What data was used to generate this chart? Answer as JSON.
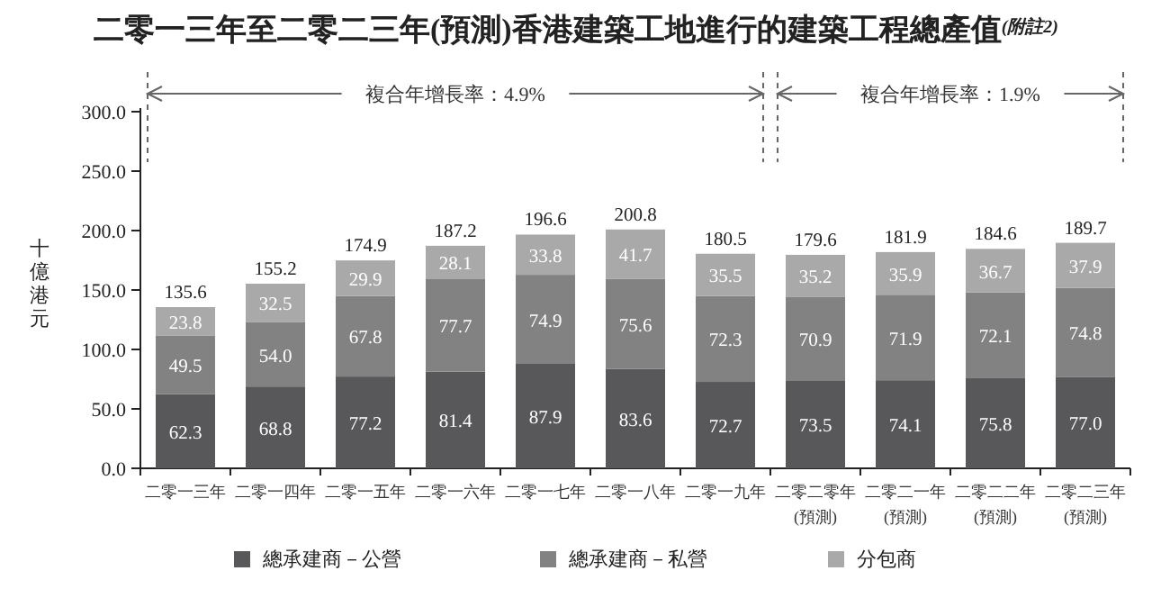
{
  "chart_data": {
    "type": "bar",
    "stacked": true,
    "title": "二零一三年至二零二三年(預測)香港建築工地進行的建築工程總產值",
    "subtitle": "(附註2)",
    "ylabel": "十億港元",
    "categories": [
      "二零一三年",
      "二零一四年",
      "二零一五年",
      "二零一六年",
      "二零一七年",
      "二零一八年",
      "二零一九年",
      "二零二零年\n(預測)",
      "二零二一年\n(預測)",
      "二零二二年\n(預測)",
      "二零二三年\n(預測)"
    ],
    "series": [
      {
        "name": "總承建商－公營",
        "color": "#58585a",
        "values": [
          62.3,
          68.8,
          77.2,
          81.4,
          87.9,
          83.6,
          72.7,
          73.5,
          74.1,
          75.8,
          77.0
        ],
        "value_labels": [
          "62.3",
          "68.8",
          "77.2",
          "81.4",
          "87.9",
          "83.6",
          "72.7",
          "73.5",
          "74.1",
          "75.8",
          "77.0"
        ]
      },
      {
        "name": "總承建商－私營",
        "color": "#828282",
        "values": [
          49.5,
          54.0,
          67.8,
          77.7,
          74.9,
          75.6,
          72.3,
          70.9,
          71.9,
          72.1,
          74.8
        ],
        "value_labels": [
          "49.5",
          "54.0",
          "67.8",
          "77.7",
          "74.9",
          "75.6",
          "72.3",
          "70.9",
          "71.9",
          "72.1",
          "74.8"
        ]
      },
      {
        "name": "分包商",
        "color": "#a9a9a9",
        "values": [
          23.8,
          32.5,
          29.9,
          28.1,
          33.8,
          41.7,
          35.5,
          35.2,
          35.9,
          36.7,
          37.9
        ],
        "value_labels": [
          "23.8",
          "32.5",
          "29.9",
          "28.1",
          "33.8",
          "41.7",
          "35.5",
          "35.2",
          "35.9",
          "36.7",
          "37.9"
        ]
      }
    ],
    "totals": [
      "135.6",
      "155.2",
      "174.9",
      "187.2",
      "196.6",
      "200.8",
      "180.5",
      "179.6",
      "181.9",
      "184.6",
      "189.7"
    ],
    "annotations": [
      "複合年增長率：4.9%",
      "複合年增長率：1.9%"
    ],
    "ylim": [
      0,
      300
    ],
    "yticks": [
      {
        "value": 0,
        "label": "0.0"
      },
      {
        "value": 50,
        "label": "50.0"
      },
      {
        "value": 100,
        "label": "100.0"
      },
      {
        "value": 150,
        "label": "150.0"
      },
      {
        "value": 200,
        "label": "200.0"
      },
      {
        "value": 250,
        "label": "250.0"
      },
      {
        "value": 300,
        "label": "300.0"
      }
    ],
    "legend": "bottom"
  }
}
